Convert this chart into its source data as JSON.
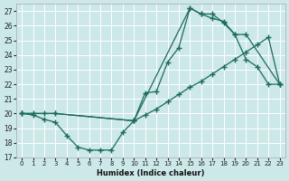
{
  "xlabel": "Humidex (Indice chaleur)",
  "bg_color": "#cce8e8",
  "grid_color": "#b8d8d8",
  "line_color": "#1a6b5a",
  "xlim": [
    -0.5,
    23.5
  ],
  "ylim": [
    17,
    27.5
  ],
  "yticks": [
    17,
    18,
    19,
    20,
    21,
    22,
    23,
    24,
    25,
    26,
    27
  ],
  "xticks": [
    0,
    1,
    2,
    3,
    4,
    5,
    6,
    7,
    8,
    9,
    10,
    11,
    12,
    13,
    14,
    15,
    16,
    17,
    18,
    19,
    20,
    21,
    22,
    23
  ],
  "line1_x": [
    0,
    1,
    2,
    3,
    4,
    5,
    6,
    7,
    8,
    9,
    10,
    11,
    12,
    13,
    14,
    15,
    16,
    17,
    18,
    19,
    20,
    21,
    22,
    23
  ],
  "line1_y": [
    20.0,
    19.9,
    19.6,
    19.4,
    18.5,
    17.7,
    17.5,
    17.5,
    17.5,
    18.7,
    19.5,
    21.4,
    21.5,
    23.5,
    24.5,
    27.2,
    26.8,
    26.8,
    26.2,
    25.4,
    23.7,
    23.2,
    22.0,
    22.0
  ],
  "line2_x": [
    0,
    1,
    2,
    3,
    10,
    11,
    12,
    13,
    14,
    15,
    16,
    17,
    18,
    19,
    20,
    21,
    22,
    23
  ],
  "line2_y": [
    20.0,
    20.0,
    20.0,
    20.0,
    19.5,
    19.9,
    20.3,
    20.8,
    21.3,
    21.8,
    22.2,
    22.7,
    23.2,
    23.7,
    24.2,
    24.7,
    25.2,
    22.0
  ],
  "line3_x": [
    0,
    3,
    10,
    15,
    16,
    17,
    18,
    19,
    20,
    23
  ],
  "line3_y": [
    20.0,
    20.0,
    19.5,
    27.2,
    26.8,
    26.5,
    26.3,
    25.4,
    25.4,
    22.0
  ]
}
